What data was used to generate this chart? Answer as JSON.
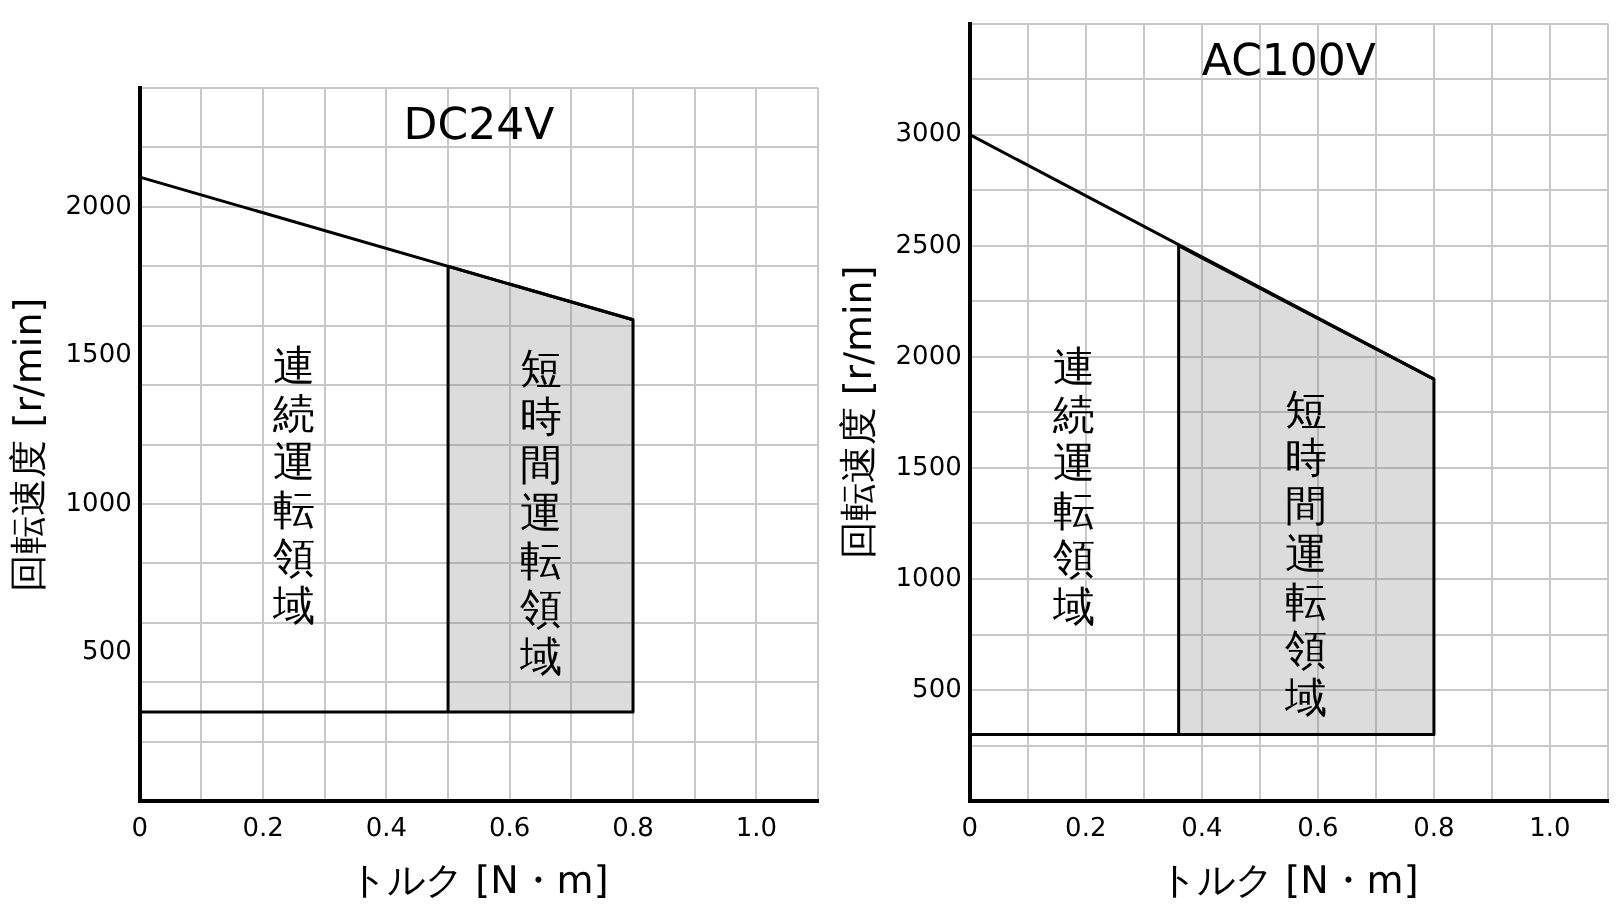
{
  "chart_data": [
    {
      "type": "line",
      "title": "DC24V",
      "xlabel": "トルク [N・m]",
      "ylabel": "回転速度 [r/min]",
      "xlim": [
        0,
        1.1
      ],
      "ylim": [
        0,
        2400
      ],
      "xticks": [
        0,
        {
          "value": 0.1,
          "label": null
        },
        0.2,
        {
          "value": 0.3,
          "label": null
        },
        0.4,
        {
          "value": 0.5,
          "label": null
        },
        0.6,
        {
          "value": 0.7,
          "label": null
        },
        0.8,
        {
          "value": 0.9,
          "label": null
        },
        {
          "value": 1.0,
          "label": "1.0"
        },
        {
          "value": 1.1,
          "label": null
        }
      ],
      "yticks": [
        {
          "value": 200,
          "label": null
        },
        {
          "value": 400,
          "label": null
        },
        500,
        {
          "value": 600,
          "label": null
        },
        {
          "value": 800,
          "label": null
        },
        1000,
        {
          "value": 1200,
          "label": null
        },
        {
          "value": 1400,
          "label": null
        },
        1500,
        {
          "value": 1600,
          "label": null
        },
        {
          "value": 1800,
          "label": null
        },
        2000,
        {
          "value": 2200,
          "label": null
        },
        {
          "value": 2400,
          "label": null
        }
      ],
      "grid": true,
      "legend": false,
      "marker": "none",
      "series": [
        {
          "color": "#000000",
          "x": [
            0,
            0.8,
            0.8,
            0
          ],
          "values": [
            2100,
            1620,
            300,
            300
          ]
        },
        {
          "color": "#000000",
          "x": [
            0.5,
            0.5
          ],
          "values": [
            300,
            1800
          ]
        },
        {
          "color": "#000000",
          "x": [
            0.5,
            0.8
          ],
          "values": [
            1800,
            1620
          ],
          "lower": [
            300,
            300
          ],
          "upper": [
            1800,
            1620
          ]
        }
      ],
      "annotations": [
        "連続運転領域",
        "短時間運転領域"
      ]
    },
    {
      "type": "line",
      "title": "AC100V",
      "xlabel": "トルク [N・m]",
      "ylabel": "回転速度 [r/min]",
      "xlim": [
        0,
        1.1
      ],
      "ylim": [
        0,
        3500
      ],
      "xticks": [
        0,
        {
          "value": 0.1,
          "label": null
        },
        0.2,
        {
          "value": 0.3,
          "label": null
        },
        0.4,
        {
          "value": 0.5,
          "label": null
        },
        0.6,
        {
          "value": 0.7,
          "label": null
        },
        0.8,
        {
          "value": 0.9,
          "label": null
        },
        {
          "value": 1.0,
          "label": "1.0"
        },
        {
          "value": 1.1,
          "label": null
        }
      ],
      "yticks": [
        {
          "value": 250,
          "label": null
        },
        500,
        {
          "value": 750,
          "label": null
        },
        1000,
        {
          "value": 1250,
          "label": null
        },
        1500,
        {
          "value": 1750,
          "label": null
        },
        2000,
        {
          "value": 2250,
          "label": null
        },
        2500,
        {
          "value": 2750,
          "label": null
        },
        3000,
        {
          "value": 3250,
          "label": null
        },
        {
          "value": 3500,
          "label": null
        }
      ],
      "grid": true,
      "legend": false,
      "marker": "none",
      "series": [
        {
          "color": "#000000",
          "x": [
            0,
            0.8,
            0.8,
            0
          ],
          "values": [
            3000,
            1900,
            300,
            300
          ]
        },
        {
          "color": "#000000",
          "x": [
            0.36,
            0.36
          ],
          "values": [
            300,
            2500
          ]
        },
        {
          "color": "#000000",
          "x": [
            0.36,
            0.8
          ],
          "values": [
            2500,
            1900
          ],
          "lower": [
            300,
            300
          ],
          "upper": [
            2500,
            1900
          ]
        }
      ],
      "annotations": [
        "連続運転領域",
        "短時間運転領域"
      ]
    }
  ]
}
